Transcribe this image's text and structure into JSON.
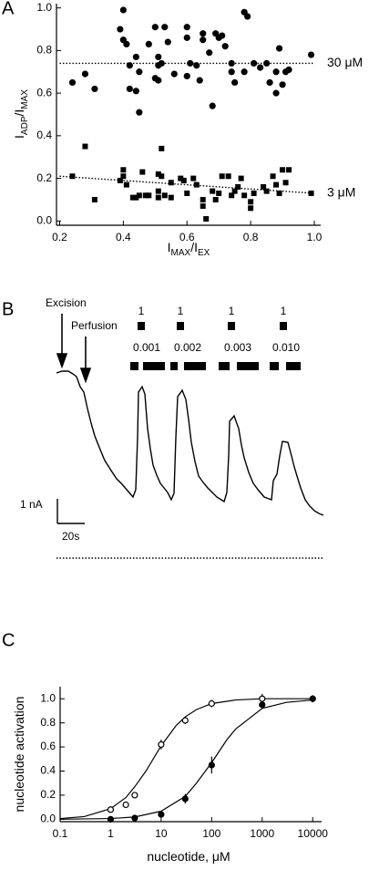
{
  "chart_data": [
    {
      "type": "scatter",
      "label": "A",
      "xlabel": [
        "I",
        "MAX",
        "/I",
        "EX"
      ],
      "ylabel": [
        "I",
        "ADP",
        "/I",
        "MAX"
      ],
      "xlim": [
        0.19,
        1.02
      ],
      "ylim": [
        -0.02,
        1.02
      ],
      "xticks": [
        0.2,
        0.4,
        0.6,
        0.8,
        {
          "value": 1,
          "label": "1.0"
        }
      ],
      "yticks": [
        {
          "value": 0,
          "label": "0.0"
        },
        0.2,
        0.4,
        0.6,
        0.8,
        {
          "value": 1,
          "label": "1.0"
        }
      ],
      "series": [
        {
          "name": "30 μM",
          "marker": "circle",
          "color": "#000",
          "x": [
            0.24,
            0.28,
            0.31,
            0.39,
            0.4,
            0.4,
            0.41,
            0.42,
            0.42,
            0.44,
            0.44,
            0.45,
            0.45,
            0.48,
            0.5,
            0.5,
            0.51,
            0.51,
            0.51,
            0.52,
            0.53,
            0.54,
            0.56,
            0.6,
            0.6,
            0.6,
            0.61,
            0.63,
            0.64,
            0.65,
            0.65,
            0.67,
            0.68,
            0.69,
            0.7,
            0.71,
            0.72,
            0.74,
            0.74,
            0.75,
            0.78,
            0.78,
            0.79,
            0.81,
            0.83,
            0.85,
            0.86,
            0.88,
            0.88,
            0.89,
            0.9,
            0.91,
            0.92,
            0.99
          ],
          "values": [
            0.65,
            0.69,
            0.62,
            0.9,
            0.99,
            0.85,
            0.83,
            0.73,
            0.62,
            0.61,
            0.77,
            0.7,
            0.51,
            0.83,
            0.67,
            0.91,
            0.77,
            0.73,
            0.66,
            0.74,
            0.91,
            0.84,
            0.69,
            0.68,
            0.86,
            0.91,
            0.74,
            0.73,
            0.66,
            0.85,
            0.88,
            0.79,
            0.54,
            0.88,
            0.86,
            0.87,
            0.82,
            0.74,
            0.7,
            0.65,
            0.7,
            0.98,
            0.96,
            0.74,
            0.72,
            0.74,
            0.65,
            0.7,
            0.6,
            0.81,
            0.64,
            0.7,
            0.71,
            0.78
          ],
          "fit": {
            "style": "dotted",
            "x": [
              0.2,
              1.0
            ],
            "values": [
              0.74,
              0.74
            ]
          }
        },
        {
          "name": "3 μM",
          "marker": "square",
          "color": "#000",
          "x": [
            0.24,
            0.28,
            0.31,
            0.39,
            0.4,
            0.4,
            0.41,
            0.43,
            0.44,
            0.45,
            0.46,
            0.47,
            0.48,
            0.51,
            0.51,
            0.51,
            0.52,
            0.52,
            0.53,
            0.55,
            0.55,
            0.58,
            0.59,
            0.6,
            0.62,
            0.63,
            0.65,
            0.65,
            0.66,
            0.68,
            0.69,
            0.7,
            0.71,
            0.73,
            0.74,
            0.75,
            0.76,
            0.77,
            0.78,
            0.8,
            0.8,
            0.81,
            0.84,
            0.85,
            0.87,
            0.88,
            0.89,
            0.9,
            0.91,
            0.92,
            0.99
          ],
          "values": [
            0.21,
            0.35,
            0.1,
            0.19,
            0.24,
            0.21,
            0.17,
            0.11,
            0.11,
            0.12,
            0.23,
            0.12,
            0.12,
            0.14,
            0.22,
            0.11,
            0.21,
            0.34,
            0.12,
            0.11,
            0.18,
            0.2,
            0.19,
            0.13,
            0.2,
            0.17,
            0.07,
            0.1,
            0.01,
            0.14,
            0.1,
            0.13,
            0.21,
            0.21,
            0.12,
            0.14,
            0.16,
            0.2,
            0.12,
            0.09,
            0.06,
            0.13,
            0.16,
            0.14,
            0.21,
            0.17,
            0.13,
            0.24,
            0.18,
            0.24,
            0.13
          ],
          "fit": {
            "style": "dotted",
            "x": [
              0.2,
              1.0
            ],
            "values": [
              0.21,
              0.13
            ]
          }
        }
      ]
    },
    {
      "type": "trace",
      "label": "B",
      "annotations": [
        "Excision",
        "Perfusion"
      ],
      "pulses": [
        "1",
        "1",
        "1",
        "1"
      ],
      "concentrations": [
        "0.001",
        "0.002",
        "0.003",
        "0.010"
      ],
      "scale_y": "1 nA",
      "scale_x": "20s"
    },
    {
      "type": "scatter",
      "label": "C",
      "log_x": true,
      "xlabel": [
        "nucleotide, μM"
      ],
      "ylabel": [
        "nucleotide activation"
      ],
      "xlim": [
        0.1,
        15000
      ],
      "ylim": [
        -0.02,
        1.1
      ],
      "xticks": [
        0.1,
        1,
        10,
        100,
        1000,
        10000
      ],
      "yticks": [
        {
          "value": 0,
          "label": "0.0"
        },
        0.2,
        0.4,
        0.6,
        0.8,
        {
          "value": 1,
          "label": "1.0"
        }
      ],
      "series": [
        {
          "marker": "circle",
          "fill": "#fff",
          "color": "#000",
          "x": [
            1,
            2,
            3,
            10,
            30,
            100,
            1000
          ],
          "values": [
            0.08,
            0.12,
            0.2,
            0.62,
            0.82,
            0.96,
            1.0
          ],
          "errors": [
            0.02,
            0.01,
            0.02,
            0.04,
            0.03,
            0.03,
            0.04
          ],
          "fit": {
            "style": "solid",
            "x": [
              0.1,
              0.3,
              1,
              2,
              3,
              5,
              10,
              20,
              30,
              50,
              100,
              300,
              1000,
              10000
            ],
            "values": [
              0.006,
              0.022,
              0.088,
              0.18,
              0.27,
              0.4,
              0.61,
              0.78,
              0.85,
              0.91,
              0.96,
              0.99,
              1,
              1
            ]
          }
        },
        {
          "marker": "circle",
          "fill": "#000",
          "color": "#000",
          "x": [
            1,
            3,
            10,
            30,
            100,
            1000,
            10000
          ],
          "values": [
            0,
            0.01,
            0.04,
            0.17,
            0.45,
            0.95,
            1.0
          ],
          "errors": [
            0.01,
            0.01,
            0.01,
            0.04,
            0.07,
            0.02,
            0.03
          ],
          "fit": {
            "style": "solid",
            "x": [
              0.1,
              1,
              3,
              10,
              30,
              50,
              100,
              200,
              300,
              1000,
              3000,
              10000
            ],
            "values": [
              0.0005,
              0.006,
              0.019,
              0.067,
              0.19,
              0.3,
              0.47,
              0.66,
              0.75,
              0.92,
              0.97,
              0.99
            ]
          }
        }
      ]
    }
  ]
}
